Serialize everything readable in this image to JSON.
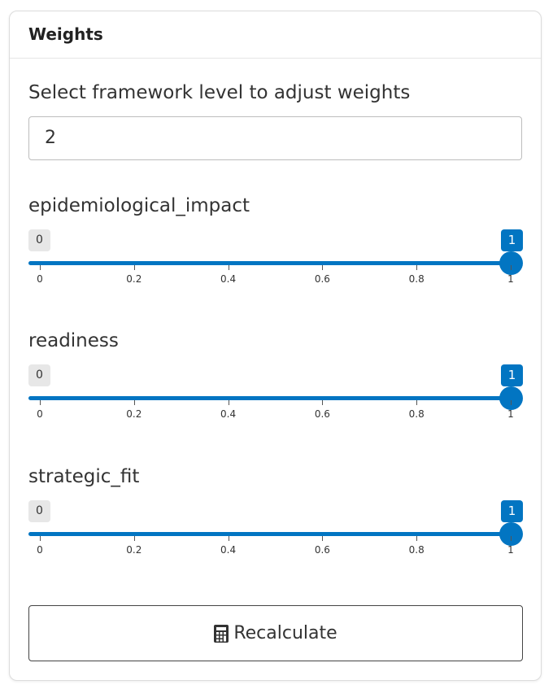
{
  "card": {
    "title": "Weights"
  },
  "framework": {
    "label": "Select framework level to adjust weights",
    "value": "2"
  },
  "sliders": [
    {
      "label": "epidemiological_impact",
      "min_label": "0",
      "max_label": "1",
      "value_from": 0,
      "value_to": 1,
      "ticks": [
        "0",
        "0.2",
        "0.4",
        "0.6",
        "0.8",
        "1"
      ]
    },
    {
      "label": "readiness",
      "min_label": "0",
      "max_label": "1",
      "value_from": 0,
      "value_to": 1,
      "ticks": [
        "0",
        "0.2",
        "0.4",
        "0.6",
        "0.8",
        "1"
      ]
    },
    {
      "label": "strategic_fit",
      "min_label": "0",
      "max_label": "1",
      "value_from": 0,
      "value_to": 1,
      "ticks": [
        "0",
        "0.2",
        "0.4",
        "0.6",
        "0.8",
        "1"
      ]
    }
  ],
  "recalculate": {
    "label": "Recalculate",
    "icon": "calculator-icon"
  },
  "colors": {
    "accent": "#0275c2",
    "badge_bg": "#e7e7e7"
  }
}
